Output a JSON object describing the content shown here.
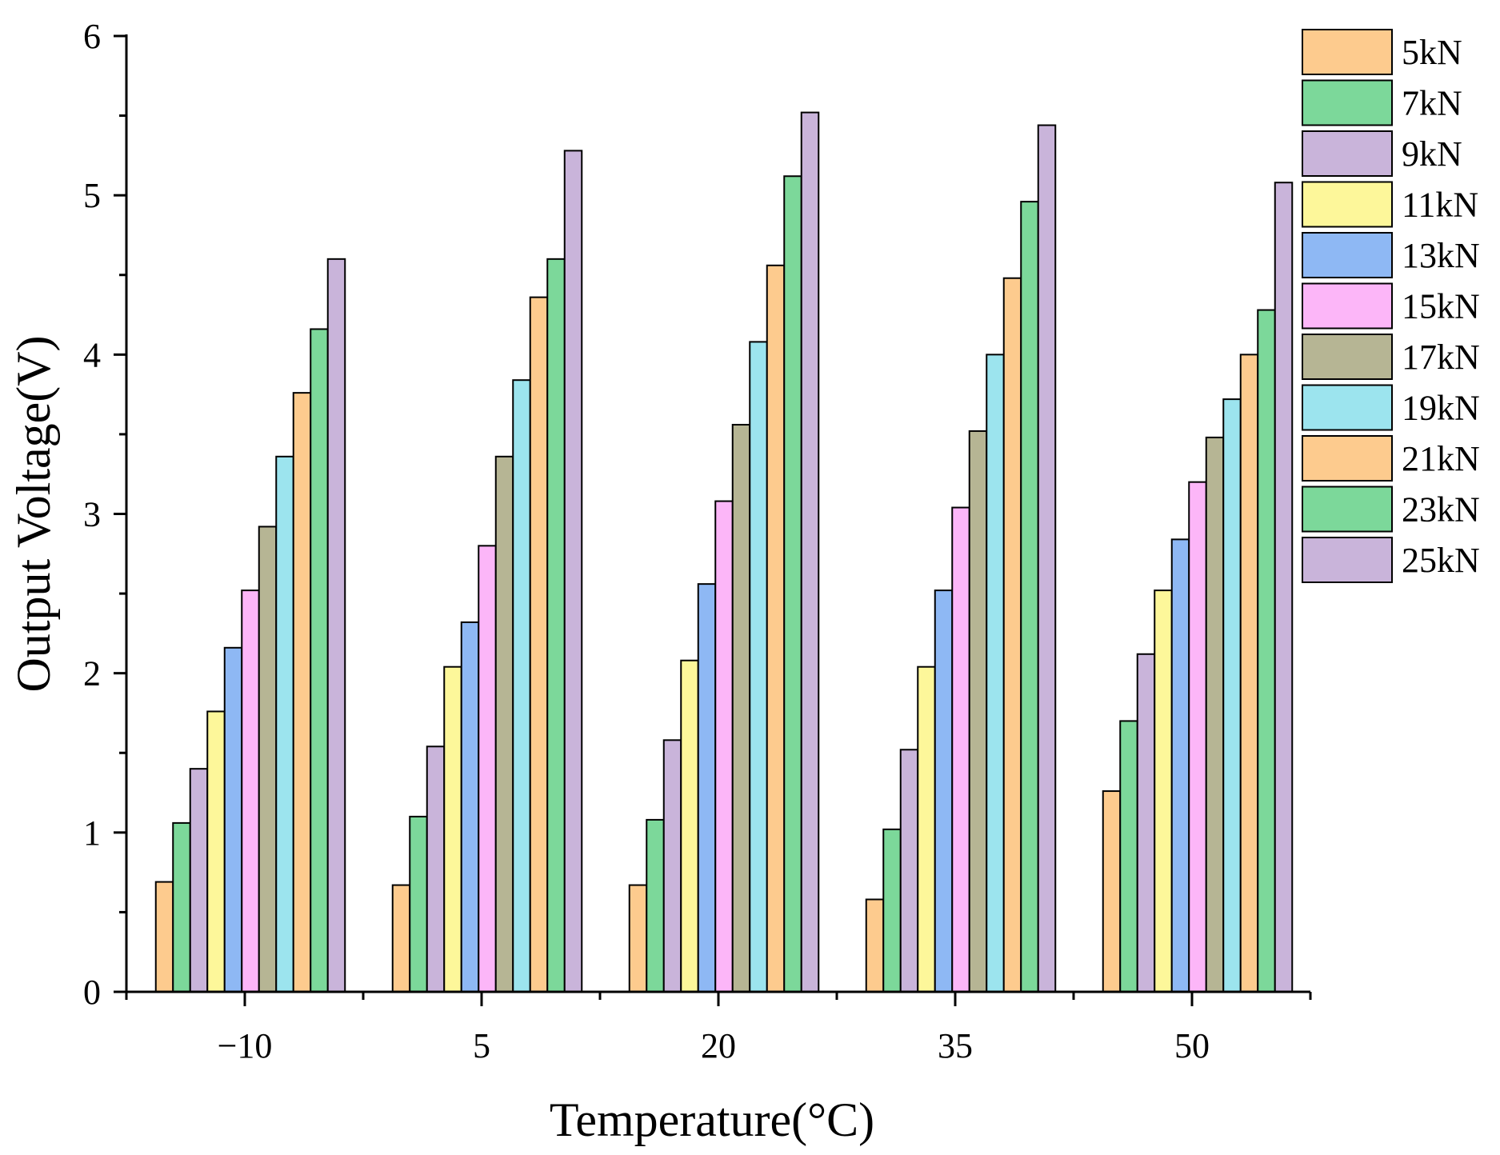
{
  "chart_data": {
    "type": "bar",
    "title": "",
    "xlabel": "Temperature(°C)",
    "ylabel": "Output Voltage(V)",
    "ylim": [
      0,
      6
    ],
    "yticks": [
      0,
      1,
      2,
      3,
      4,
      5,
      6
    ],
    "categories": [
      "−10",
      "5",
      "20",
      "35",
      "50"
    ],
    "legend_position": "top-right",
    "grid": false,
    "series": [
      {
        "name": "5kN",
        "color": "#FDCB8E",
        "values": [
          0.69,
          0.67,
          0.67,
          0.58,
          1.26
        ]
      },
      {
        "name": "7kN",
        "color": "#7CD89A",
        "values": [
          1.06,
          1.1,
          1.08,
          1.02,
          1.7
        ]
      },
      {
        "name": "9kN",
        "color": "#C9B4DA",
        "values": [
          1.4,
          1.54,
          1.58,
          1.52,
          2.12
        ]
      },
      {
        "name": "11kN",
        "color": "#FDF79A",
        "values": [
          1.76,
          2.04,
          2.08,
          2.04,
          2.52
        ]
      },
      {
        "name": "13kN",
        "color": "#8EB8F4",
        "values": [
          2.16,
          2.32,
          2.56,
          2.52,
          2.84
        ]
      },
      {
        "name": "15kN",
        "color": "#FCB6F8",
        "values": [
          2.52,
          2.8,
          3.08,
          3.04,
          3.2
        ]
      },
      {
        "name": "17kN",
        "color": "#B6B594",
        "values": [
          2.92,
          3.36,
          3.56,
          3.52,
          3.48
        ]
      },
      {
        "name": "19kN",
        "color": "#9CE4EE",
        "values": [
          3.36,
          3.84,
          4.08,
          4.0,
          3.72
        ]
      },
      {
        "name": "21kN",
        "color": "#FDCB8E",
        "values": [
          3.76,
          4.36,
          4.56,
          4.48,
          4.0
        ]
      },
      {
        "name": "23kN",
        "color": "#7CD89A",
        "values": [
          4.16,
          4.6,
          5.12,
          4.96,
          4.28
        ]
      },
      {
        "name": "25kN",
        "color": "#C9B4DA",
        "values": [
          4.6,
          5.28,
          5.52,
          5.44,
          5.08
        ]
      }
    ]
  }
}
